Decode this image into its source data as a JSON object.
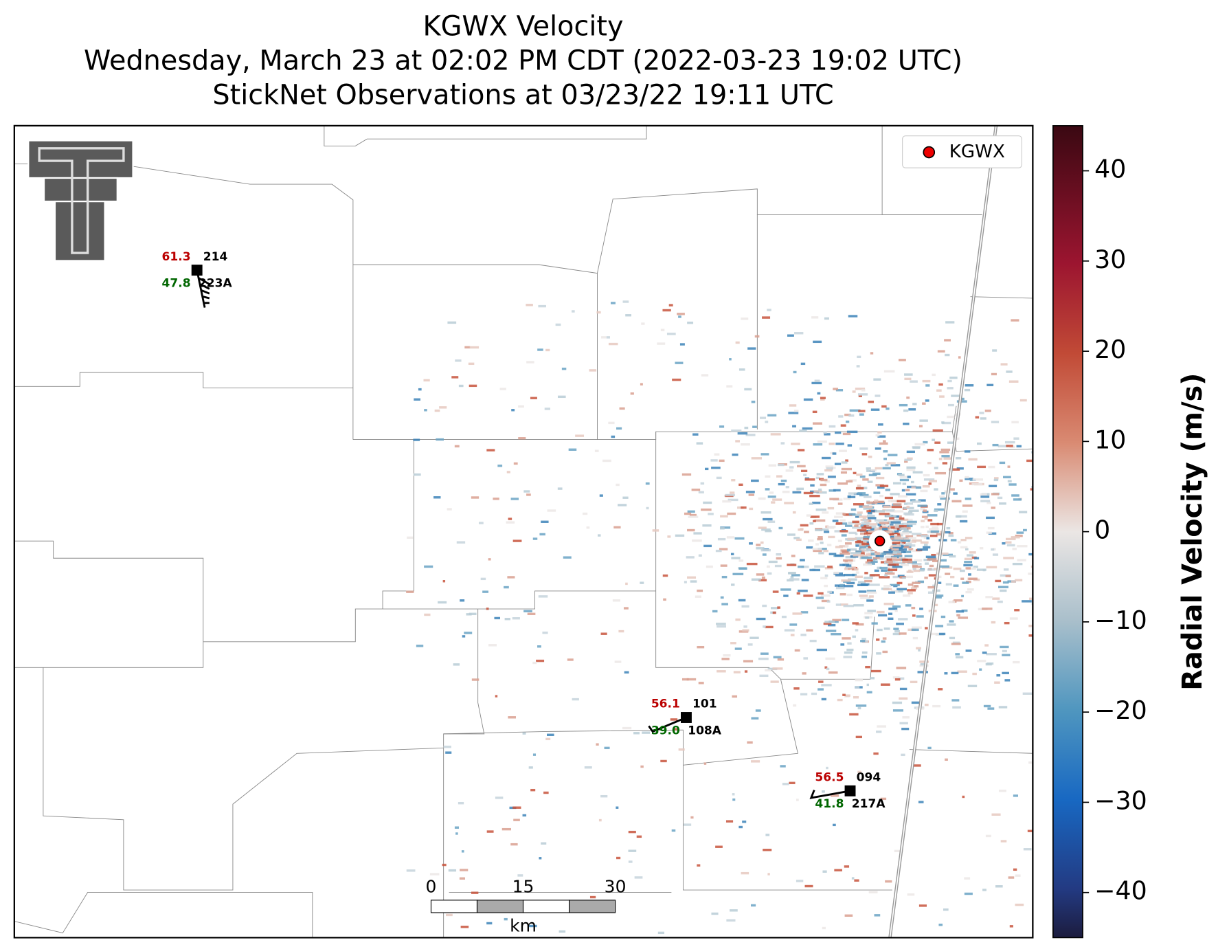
{
  "title": [
    "KGWX Velocity",
    "Wednesday, March 23 at 02:02 PM CDT (2022-03-23 19:02 UTC)",
    "StickNet Observations at 03/23/22 19:11 UTC"
  ],
  "map": {
    "legend": {
      "label": "KGWX"
    },
    "stations": [
      {
        "temperature": "61.3",
        "id": "214",
        "dewpoint": "47.8",
        "probe": "223A"
      },
      {
        "temperature": "56.1",
        "id": "101",
        "dewpoint": "39.0",
        "probe": "108A"
      },
      {
        "temperature": "56.5",
        "id": "094",
        "dewpoint": "41.8",
        "probe": "217A"
      }
    ],
    "scale_bar": {
      "ticks": [
        0,
        15,
        30
      ],
      "unit": "km"
    }
  },
  "colorbar": {
    "label": "Radial Velocity (m/s)",
    "lim": [
      -45,
      45
    ],
    "ticks": [
      40,
      30,
      20,
      10,
      0,
      {
        "value": -10,
        "label": "−10"
      },
      {
        "value": -20,
        "label": "−20"
      },
      {
        "value": -30,
        "label": "−30"
      },
      {
        "value": -40,
        "label": "−40"
      }
    ]
  }
}
